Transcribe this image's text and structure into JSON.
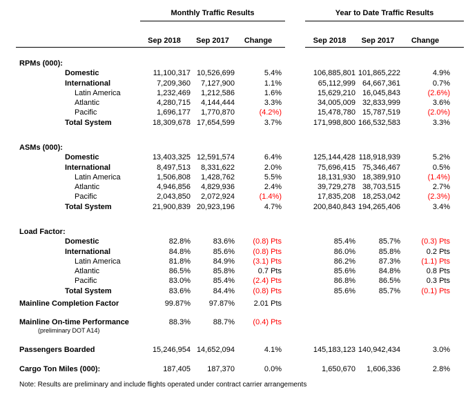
{
  "colors": {
    "negative": "#ff0000",
    "text": "#000000",
    "background": "#ffffff"
  },
  "header": {
    "monthly_title": "Monthly Traffic Results",
    "ytd_title": "Year to Date Traffic Results",
    "monthly_cols": {
      "c1": "Sep 2018",
      "c2": "Sep 2017",
      "c3": "Change"
    },
    "ytd_cols": {
      "c1": "Sep 2018",
      "c2": "Sep 2017",
      "c3": "Change"
    }
  },
  "sections": {
    "rpms": {
      "title": "RPMs (000):",
      "rows": [
        {
          "label": "Domestic",
          "m2018": "11,100,317",
          "m2017": "10,526,699",
          "mchg": "5.4%",
          "y2018": "106,885,801",
          "y2017": "101,865,222",
          "ychg": "4.9%"
        },
        {
          "label": "International",
          "m2018": "7,209,360",
          "m2017": "7,127,900",
          "mchg": "1.1%",
          "y2018": "65,112,999",
          "y2017": "64,667,361",
          "ychg": "0.7%"
        },
        {
          "label": "Latin America",
          "m2018": "1,232,469",
          "m2017": "1,212,586",
          "mchg": "1.6%",
          "y2018": "15,629,210",
          "y2017": "16,045,843",
          "ychg": "(2.6%)"
        },
        {
          "label": "Atlantic",
          "m2018": "4,280,715",
          "m2017": "4,144,444",
          "mchg": "3.3%",
          "y2018": "34,005,009",
          "y2017": "32,833,999",
          "ychg": "3.6%"
        },
        {
          "label": "Pacific",
          "m2018": "1,696,177",
          "m2017": "1,770,870",
          "mchg": "(4.2%)",
          "y2018": "15,478,780",
          "y2017": "15,787,519",
          "ychg": "(2.0%)"
        },
        {
          "label": "Total System",
          "m2018": "18,309,678",
          "m2017": "17,654,599",
          "mchg": "3.7%",
          "y2018": "171,998,800",
          "y2017": "166,532,583",
          "ychg": "3.3%"
        }
      ]
    },
    "asms": {
      "title": "ASMs (000):",
      "rows": [
        {
          "label": "Domestic",
          "m2018": "13,403,325",
          "m2017": "12,591,574",
          "mchg": "6.4%",
          "y2018": "125,144,428",
          "y2017": "118,918,939",
          "ychg": "5.2%"
        },
        {
          "label": "International",
          "m2018": "8,497,513",
          "m2017": "8,331,622",
          "mchg": "2.0%",
          "y2018": "75,696,415",
          "y2017": "75,346,467",
          "ychg": "0.5%"
        },
        {
          "label": "Latin America",
          "m2018": "1,506,808",
          "m2017": "1,428,762",
          "mchg": "5.5%",
          "y2018": "18,131,930",
          "y2017": "18,389,910",
          "ychg": "(1.4%)"
        },
        {
          "label": "Atlantic",
          "m2018": "4,946,856",
          "m2017": "4,829,936",
          "mchg": "2.4%",
          "y2018": "39,729,278",
          "y2017": "38,703,515",
          "ychg": "2.7%"
        },
        {
          "label": "Pacific",
          "m2018": "2,043,850",
          "m2017": "2,072,924",
          "mchg": "(1.4%)",
          "y2018": "17,835,208",
          "y2017": "18,253,042",
          "ychg": "(2.3%)"
        },
        {
          "label": "Total System",
          "m2018": "21,900,839",
          "m2017": "20,923,196",
          "mchg": "4.7%",
          "y2018": "200,840,843",
          "y2017": "194,265,406",
          "ychg": "3.4%"
        }
      ]
    },
    "load_factor": {
      "title": "Load Factor:",
      "rows": [
        {
          "label": "Domestic",
          "m2018": "82.8%",
          "m2017": "83.6%",
          "mchg": "(0.8) Pts",
          "y2018": "85.4%",
          "y2017": "85.7%",
          "ychg": "(0.3) Pts"
        },
        {
          "label": "International",
          "m2018": "84.8%",
          "m2017": "85.6%",
          "mchg": "(0.8) Pts",
          "y2018": "86.0%",
          "y2017": "85.8%",
          "ychg": "0.2 Pts"
        },
        {
          "label": "Latin America",
          "m2018": "81.8%",
          "m2017": "84.9%",
          "mchg": "(3.1) Pts",
          "y2018": "86.2%",
          "y2017": "87.3%",
          "ychg": "(1.1) Pts"
        },
        {
          "label": "Atlantic",
          "m2018": "86.5%",
          "m2017": "85.8%",
          "mchg": "0.7 Pts",
          "y2018": "85.6%",
          "y2017": "84.8%",
          "ychg": "0.8 Pts"
        },
        {
          "label": "Pacific",
          "m2018": "83.0%",
          "m2017": "85.4%",
          "mchg": "(2.4) Pts",
          "y2018": "86.8%",
          "y2017": "86.5%",
          "ychg": "0.3 Pts"
        },
        {
          "label": "Total System",
          "m2018": "83.6%",
          "m2017": "84.4%",
          "mchg": "(0.8) Pts",
          "y2018": "85.6%",
          "y2017": "85.7%",
          "ychg": "(0.1) Pts"
        }
      ]
    }
  },
  "metrics": {
    "completion": {
      "label": "Mainline Completion Factor",
      "m2018": "99.87%",
      "m2017": "97.87%",
      "mchg": "2.01 Pts"
    },
    "ontime": {
      "label": "Mainline On-time Performance",
      "sublabel": "(preliminary DOT A14)",
      "m2018": "88.3%",
      "m2017": "88.7%",
      "mchg": "(0.4) Pts"
    },
    "passengers": {
      "label": "Passengers Boarded",
      "m2018": "15,246,954",
      "m2017": "14,652,094",
      "mchg": "4.1%",
      "y2018": "145,183,123",
      "y2017": "140,942,434",
      "ychg": "3.0%"
    },
    "cargo": {
      "label": "Cargo Ton Miles (000):",
      "m2018": "187,405",
      "m2017": "187,370",
      "mchg": "0.0%",
      "y2018": "1,650,670",
      "y2017": "1,606,336",
      "ychg": "2.8%"
    }
  },
  "note": "Note: Results are preliminary and include flights operated under contract carrier arrangements"
}
